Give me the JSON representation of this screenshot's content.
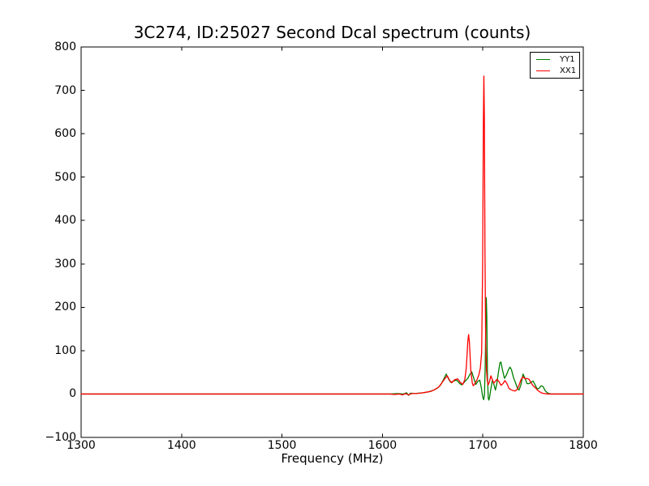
{
  "chart_data": {
    "type": "line",
    "title": "3C274, ID:25027 Second Dcal spectrum (counts)",
    "xlabel": "Frequency (MHz)",
    "ylabel": "",
    "xlim": [
      1300,
      1800
    ],
    "ylim": [
      -100,
      800
    ],
    "xticks": [
      1300,
      1400,
      1500,
      1600,
      1700,
      1800
    ],
    "yticks": [
      -100,
      0,
      100,
      200,
      300,
      400,
      500,
      600,
      700,
      800
    ],
    "grid": false,
    "background": "#ffffff",
    "axis_color": "#000000",
    "legend": {
      "position": "top-right",
      "entries": [
        "YY1",
        "XX1"
      ]
    },
    "series": [
      {
        "name": "YY1",
        "color": "#007f00",
        "points": [
          [
            1300,
            0
          ],
          [
            1360,
            0
          ],
          [
            1420,
            0
          ],
          [
            1480,
            0
          ],
          [
            1540,
            0
          ],
          [
            1580,
            0
          ],
          [
            1600,
            0
          ],
          [
            1608,
            0
          ],
          [
            1615,
            1
          ],
          [
            1621,
            0
          ],
          [
            1624,
            3
          ],
          [
            1626,
            -3
          ],
          [
            1628,
            2
          ],
          [
            1632,
            1
          ],
          [
            1636,
            2
          ],
          [
            1641,
            3
          ],
          [
            1646,
            5
          ],
          [
            1651,
            9
          ],
          [
            1655,
            14
          ],
          [
            1658,
            21
          ],
          [
            1661,
            34
          ],
          [
            1663.5,
            46
          ],
          [
            1666,
            34
          ],
          [
            1668,
            27
          ],
          [
            1671,
            30
          ],
          [
            1674,
            32
          ],
          [
            1677,
            24
          ],
          [
            1679,
            21
          ],
          [
            1681,
            26
          ],
          [
            1683,
            31
          ],
          [
            1685,
            36
          ],
          [
            1687,
            45
          ],
          [
            1689,
            51
          ],
          [
            1691,
            36
          ],
          [
            1693,
            22
          ],
          [
            1695,
            29
          ],
          [
            1697,
            32
          ],
          [
            1698.5,
            14
          ],
          [
            1699.8,
            -6
          ],
          [
            1700.8,
            -13
          ],
          [
            1701.6,
            -2
          ],
          [
            1702.4,
            70
          ],
          [
            1703,
            185
          ],
          [
            1703.4,
            222
          ],
          [
            1703.9,
            180
          ],
          [
            1704.6,
            40
          ],
          [
            1705.4,
            -10
          ],
          [
            1706,
            -14
          ],
          [
            1706.8,
            -6
          ],
          [
            1708,
            12
          ],
          [
            1709.5,
            32
          ],
          [
            1711,
            22
          ],
          [
            1712.5,
            9
          ],
          [
            1714,
            25
          ],
          [
            1715.5,
            50
          ],
          [
            1717,
            72
          ],
          [
            1718,
            74
          ],
          [
            1719.5,
            56
          ],
          [
            1721.5,
            36
          ],
          [
            1723.5,
            44
          ],
          [
            1725.5,
            56
          ],
          [
            1727,
            62
          ],
          [
            1728.5,
            56
          ],
          [
            1730.5,
            38
          ],
          [
            1732.5,
            26
          ],
          [
            1734.5,
            13
          ],
          [
            1736,
            9
          ],
          [
            1738,
            22
          ],
          [
            1740,
            46
          ],
          [
            1742,
            36
          ],
          [
            1744,
            24
          ],
          [
            1746,
            24
          ],
          [
            1748,
            27
          ],
          [
            1750,
            30
          ],
          [
            1752,
            21
          ],
          [
            1754,
            12
          ],
          [
            1756,
            13
          ],
          [
            1758,
            19
          ],
          [
            1760,
            17
          ],
          [
            1762,
            8
          ],
          [
            1764,
            3
          ],
          [
            1766,
            1
          ],
          [
            1768,
            0
          ],
          [
            1772,
            0
          ],
          [
            1780,
            0
          ],
          [
            1790,
            0
          ],
          [
            1800,
            0
          ]
        ]
      },
      {
        "name": "XX1",
        "color": "#ff0000",
        "points": [
          [
            1300,
            0
          ],
          [
            1360,
            0
          ],
          [
            1420,
            0
          ],
          [
            1480,
            0
          ],
          [
            1540,
            0
          ],
          [
            1580,
            0
          ],
          [
            1600,
            0
          ],
          [
            1607,
            0
          ],
          [
            1612,
            -1
          ],
          [
            1617,
            0
          ],
          [
            1620,
            -2
          ],
          [
            1623,
            1
          ],
          [
            1626,
            -2
          ],
          [
            1629,
            1
          ],
          [
            1633,
            1
          ],
          [
            1638,
            2
          ],
          [
            1643,
            4
          ],
          [
            1648,
            6
          ],
          [
            1652,
            10
          ],
          [
            1656,
            16
          ],
          [
            1659,
            25
          ],
          [
            1662,
            35
          ],
          [
            1664.5,
            42
          ],
          [
            1667,
            31
          ],
          [
            1669,
            26
          ],
          [
            1672,
            33
          ],
          [
            1675,
            35
          ],
          [
            1677.5,
            27
          ],
          [
            1680,
            22
          ],
          [
            1682,
            33
          ],
          [
            1683.5,
            60
          ],
          [
            1685,
            120
          ],
          [
            1685.8,
            137
          ],
          [
            1686.6,
            120
          ],
          [
            1688,
            55
          ],
          [
            1689.5,
            25
          ],
          [
            1690.5,
            19
          ],
          [
            1692,
            24
          ],
          [
            1694,
            32
          ],
          [
            1696,
            44
          ],
          [
            1697.5,
            60
          ],
          [
            1698.8,
            95
          ],
          [
            1699.8,
            300
          ],
          [
            1700.5,
            620
          ],
          [
            1701,
            733
          ],
          [
            1701.5,
            640
          ],
          [
            1702.1,
            330
          ],
          [
            1702.8,
            120
          ],
          [
            1703.6,
            55
          ],
          [
            1704.5,
            30
          ],
          [
            1705.3,
            21
          ],
          [
            1706.5,
            28
          ],
          [
            1708,
            42
          ],
          [
            1709.5,
            33
          ],
          [
            1710.8,
            25
          ],
          [
            1712,
            28
          ],
          [
            1714,
            34
          ],
          [
            1716,
            29
          ],
          [
            1718,
            20
          ],
          [
            1720,
            24
          ],
          [
            1722,
            31
          ],
          [
            1724,
            24
          ],
          [
            1726,
            13
          ],
          [
            1728,
            10
          ],
          [
            1730,
            8
          ],
          [
            1732,
            7
          ],
          [
            1734,
            10
          ],
          [
            1736,
            20
          ],
          [
            1738,
            33
          ],
          [
            1740,
            40
          ],
          [
            1742,
            35
          ],
          [
            1744,
            36
          ],
          [
            1746,
            34
          ],
          [
            1748,
            26
          ],
          [
            1750,
            19
          ],
          [
            1752,
            15
          ],
          [
            1754,
            10
          ],
          [
            1756,
            6
          ],
          [
            1758,
            3
          ],
          [
            1760,
            1.5
          ],
          [
            1763,
            0.5
          ],
          [
            1766,
            0
          ],
          [
            1772,
            0
          ],
          [
            1780,
            0
          ],
          [
            1790,
            0
          ],
          [
            1800,
            0
          ]
        ]
      }
    ]
  }
}
